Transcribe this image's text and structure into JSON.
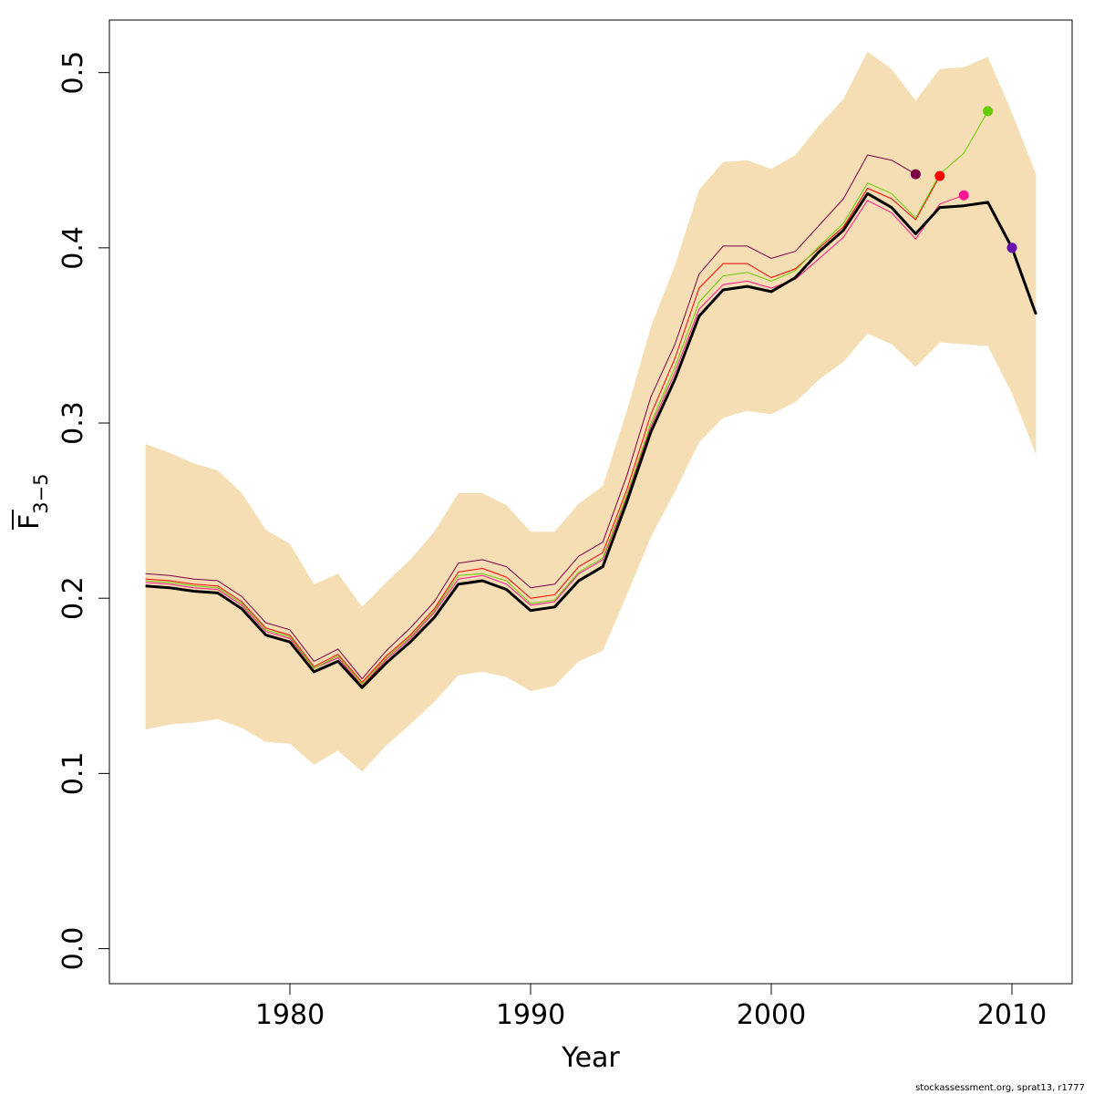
{
  "chart_data": {
    "type": "line",
    "xlabel": "Year",
    "ylabel": "F",
    "ylabel_sub": "3−5",
    "xlim": [
      1972.5,
      2012.5
    ],
    "ylim": [
      -0.02,
      0.53
    ],
    "x_ticks": [
      1980,
      1990,
      2000,
      2010
    ],
    "x_tick_labels": [
      "1980",
      "1990",
      "2000",
      "2010"
    ],
    "y_ticks": [
      0.0,
      0.1,
      0.2,
      0.3,
      0.4,
      0.5
    ],
    "y_tick_labels": [
      "0.0",
      "0.1",
      "0.2",
      "0.3",
      "0.4",
      "0.5"
    ],
    "grid": false,
    "confidence_band": {
      "color": "#f5deb3",
      "x": [
        1974,
        1975,
        1976,
        1977,
        1978,
        1979,
        1980,
        1981,
        1982,
        1983,
        1984,
        1985,
        1986,
        1987,
        1988,
        1989,
        1990,
        1991,
        1992,
        1993,
        1994,
        1995,
        1996,
        1997,
        1998,
        1999,
        2000,
        2001,
        2002,
        2003,
        2004,
        2005,
        2006,
        2007,
        2008,
        2009,
        2010,
        2011
      ],
      "upper": [
        0.288,
        0.283,
        0.277,
        0.273,
        0.26,
        0.239,
        0.231,
        0.208,
        0.214,
        0.195,
        0.209,
        0.222,
        0.238,
        0.26,
        0.26,
        0.253,
        0.238,
        0.238,
        0.254,
        0.264,
        0.307,
        0.355,
        0.39,
        0.433,
        0.449,
        0.45,
        0.445,
        0.453,
        0.47,
        0.485,
        0.512,
        0.502,
        0.484,
        0.502,
        0.503,
        0.509,
        0.477,
        0.442
      ],
      "lower": [
        0.125,
        0.128,
        0.129,
        0.131,
        0.126,
        0.118,
        0.117,
        0.105,
        0.113,
        0.101,
        0.116,
        0.128,
        0.141,
        0.156,
        0.158,
        0.155,
        0.147,
        0.15,
        0.164,
        0.17,
        0.202,
        0.235,
        0.261,
        0.289,
        0.303,
        0.307,
        0.305,
        0.312,
        0.325,
        0.335,
        0.351,
        0.345,
        0.332,
        0.346,
        0.345,
        0.344,
        0.317,
        0.282
      ]
    },
    "series": [
      {
        "color": "#000000",
        "width": 3,
        "x": [
          1974,
          1975,
          1976,
          1977,
          1978,
          1979,
          1980,
          1981,
          1982,
          1983,
          1984,
          1985,
          1986,
          1987,
          1988,
          1989,
          1990,
          1991,
          1992,
          1993,
          1994,
          1995,
          1996,
          1997,
          1998,
          1999,
          2000,
          2001,
          2002,
          2003,
          2004,
          2005,
          2006,
          2007,
          2008,
          2009,
          2010,
          2011
        ],
        "values": [
          0.207,
          0.206,
          0.204,
          0.203,
          0.194,
          0.179,
          0.175,
          0.158,
          0.164,
          0.149,
          0.163,
          0.175,
          0.189,
          0.208,
          0.21,
          0.205,
          0.193,
          0.195,
          0.21,
          0.218,
          0.255,
          0.295,
          0.325,
          0.361,
          0.376,
          0.378,
          0.375,
          0.383,
          0.398,
          0.41,
          0.431,
          0.423,
          0.408,
          0.423,
          0.424,
          0.426,
          0.4,
          0.362
        ],
        "end_point": false
      },
      {
        "color": "#7b0046",
        "width": 1,
        "x": [
          1974,
          1975,
          1976,
          1977,
          1978,
          1979,
          1980,
          1981,
          1982,
          1983,
          1984,
          1985,
          1986,
          1987,
          1988,
          1989,
          1990,
          1991,
          1992,
          1993,
          1994,
          1995,
          1996,
          1997,
          1998,
          1999,
          2000,
          2001,
          2002,
          2003,
          2004,
          2005,
          2006
        ],
        "values": [
          0.214,
          0.213,
          0.211,
          0.21,
          0.201,
          0.186,
          0.182,
          0.164,
          0.171,
          0.154,
          0.17,
          0.183,
          0.198,
          0.22,
          0.222,
          0.218,
          0.206,
          0.208,
          0.224,
          0.232,
          0.27,
          0.315,
          0.345,
          0.385,
          0.401,
          0.401,
          0.394,
          0.398,
          0.413,
          0.428,
          0.453,
          0.45,
          0.442
        ],
        "end_point": true
      },
      {
        "color": "#ff0000",
        "width": 1,
        "x": [
          1974,
          1975,
          1976,
          1977,
          1978,
          1979,
          1980,
          1981,
          1982,
          1983,
          1984,
          1985,
          1986,
          1987,
          1988,
          1989,
          1990,
          1991,
          1992,
          1993,
          1994,
          1995,
          1996,
          1997,
          1998,
          1999,
          2000,
          2001,
          2002,
          2003,
          2004,
          2005,
          2006,
          2007
        ],
        "values": [
          0.211,
          0.21,
          0.208,
          0.207,
          0.198,
          0.183,
          0.179,
          0.161,
          0.168,
          0.152,
          0.167,
          0.179,
          0.194,
          0.215,
          0.217,
          0.212,
          0.2,
          0.202,
          0.218,
          0.226,
          0.262,
          0.305,
          0.337,
          0.377,
          0.391,
          0.391,
          0.383,
          0.388,
          0.4,
          0.412,
          0.434,
          0.428,
          0.416,
          0.441
        ],
        "end_point": true
      },
      {
        "color": "#ff1493",
        "width": 1,
        "x": [
          1974,
          1975,
          1976,
          1977,
          1978,
          1979,
          1980,
          1981,
          1982,
          1983,
          1984,
          1985,
          1986,
          1987,
          1988,
          1989,
          1990,
          1991,
          1992,
          1993,
          1994,
          1995,
          1996,
          1997,
          1998,
          1999,
          2000,
          2001,
          2002,
          2003,
          2004,
          2005,
          2006,
          2007,
          2008
        ],
        "values": [
          0.209,
          0.208,
          0.206,
          0.205,
          0.196,
          0.181,
          0.177,
          0.16,
          0.166,
          0.15,
          0.165,
          0.177,
          0.192,
          0.211,
          0.213,
          0.208,
          0.196,
          0.198,
          0.214,
          0.222,
          0.258,
          0.298,
          0.329,
          0.365,
          0.379,
          0.381,
          0.377,
          0.382,
          0.394,
          0.406,
          0.427,
          0.42,
          0.405,
          0.425,
          0.43
        ],
        "end_point": true
      },
      {
        "color": "#66cc00",
        "width": 1,
        "x": [
          1974,
          1975,
          1976,
          1977,
          1978,
          1979,
          1980,
          1981,
          1982,
          1983,
          1984,
          1985,
          1986,
          1987,
          1988,
          1989,
          1990,
          1991,
          1992,
          1993,
          1994,
          1995,
          1996,
          1997,
          1998,
          1999,
          2000,
          2001,
          2002,
          2003,
          2004,
          2005,
          2006,
          2007,
          2008,
          2009
        ],
        "values": [
          0.21,
          0.209,
          0.207,
          0.206,
          0.197,
          0.182,
          0.178,
          0.16,
          0.167,
          0.151,
          0.166,
          0.178,
          0.193,
          0.213,
          0.214,
          0.21,
          0.197,
          0.199,
          0.215,
          0.223,
          0.259,
          0.3,
          0.332,
          0.369,
          0.384,
          0.386,
          0.381,
          0.387,
          0.401,
          0.414,
          0.437,
          0.431,
          0.417,
          0.442,
          0.454,
          0.478
        ],
        "end_point": true
      },
      {
        "color": "#6a0dad",
        "width": 0,
        "x": [
          2010
        ],
        "values": [
          0.4
        ],
        "end_point": true
      }
    ]
  },
  "footer": {
    "credit": "stockassessment.org, sprat13, r1777"
  }
}
